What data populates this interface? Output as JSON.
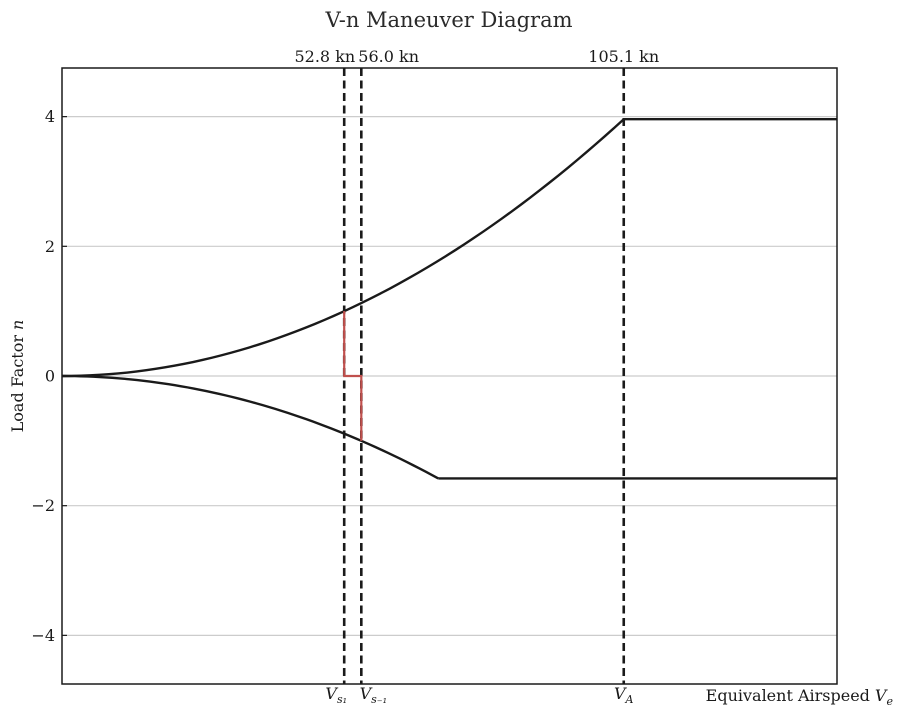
{
  "chart_data": {
    "type": "line",
    "title": "V-n Maneuver Diagram",
    "xlabel": "Equivalent Airspeed",
    "xlabel_symbol": "V",
    "xlabel_subscript": "e",
    "ylabel": "Load Factor",
    "ylabel_symbol": "n",
    "xlim": [
      0,
      145
    ],
    "ylim": [
      -4.75,
      4.75
    ],
    "yticks": [
      4,
      2,
      0,
      -2,
      -4
    ],
    "ytick_labels": [
      "4",
      "2",
      "0",
      "−2",
      "−4"
    ],
    "grid": "horizontal",
    "colors": {
      "envelope": "#1a1a1a",
      "stall": "#c0504d",
      "grid": "#cccccc",
      "marker": "#1a1a1a"
    },
    "speed_markers": [
      {
        "value": 52.8,
        "top_label": "52.8  kn",
        "axis_symbol": "V",
        "axis_subscript": "s₁"
      },
      {
        "value": 56.0,
        "top_label": "56.0  kn",
        "axis_symbol": "V",
        "axis_subscript": "s₋₁"
      },
      {
        "value": 105.1,
        "top_label": "105.1  kn",
        "axis_symbol": "V",
        "axis_subscript": "A"
      }
    ],
    "series": [
      {
        "role": "positive-stall-curve",
        "x": [
          0,
          52.8,
          56.0,
          70,
          85,
          95,
          105.1
        ],
        "y": [
          0,
          1.0,
          1.13,
          1.76,
          2.61,
          3.27,
          3.96
        ]
      },
      {
        "role": "positive-limit",
        "x": [
          105.1,
          145
        ],
        "y": [
          3.96,
          3.96
        ]
      },
      {
        "role": "negative-stall-curve",
        "x": [
          0,
          52.8,
          56.0,
          70.4
        ],
        "y": [
          0,
          -0.89,
          -1.0,
          -1.58
        ]
      },
      {
        "role": "negative-limit",
        "x": [
          70.4,
          145
        ],
        "y": [
          -1.58,
          -1.58
        ]
      },
      {
        "role": "stall-boundary",
        "x": [
          52.8,
          52.8,
          56.0,
          56.0
        ],
        "y": [
          1.0,
          0,
          0,
          -1.0
        ]
      }
    ]
  }
}
